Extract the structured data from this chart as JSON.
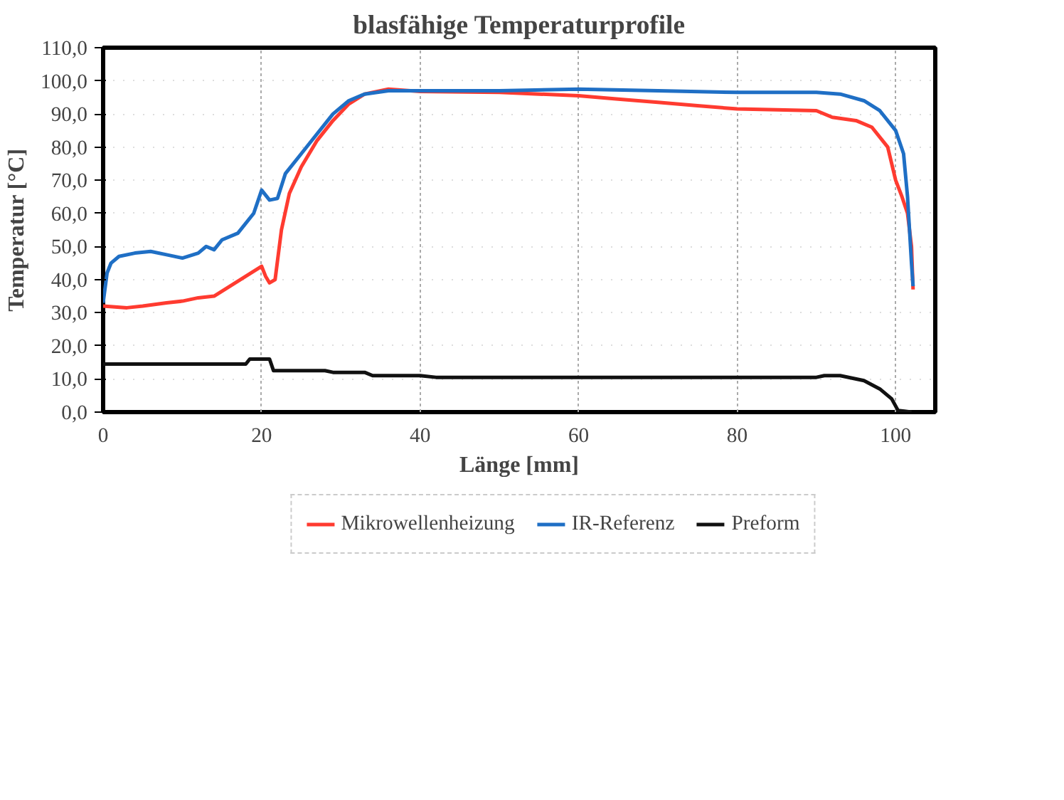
{
  "chart_data": {
    "type": "line",
    "title": "blasfähige Temperaturprofile",
    "xlabel": "Länge [mm]",
    "ylabel": "Temperatur [°C]",
    "xlim": [
      0,
      105
    ],
    "ylim": [
      0,
      110
    ],
    "xticks": [
      0,
      20,
      40,
      60,
      80,
      100
    ],
    "yticks": [
      {
        "value": 0,
        "label": "0,0"
      },
      {
        "value": 10,
        "label": "10,0"
      },
      {
        "value": 20,
        "label": "20,0"
      },
      {
        "value": 30,
        "label": "30,0"
      },
      {
        "value": 40,
        "label": "40,0"
      },
      {
        "value": 50,
        "label": "50,0"
      },
      {
        "value": 60,
        "label": "60,0"
      },
      {
        "value": 70,
        "label": "70,0"
      },
      {
        "value": 80,
        "label": "80,0"
      },
      {
        "value": 90,
        "label": "90,0"
      },
      {
        "value": 100,
        "label": "100,0"
      },
      {
        "value": 110,
        "label": "110,0"
      }
    ],
    "grid": true,
    "legend": "bottom",
    "line_style": "solid",
    "series": [
      {
        "name": "Mikrowellenheizung",
        "color": "#ff3b30",
        "x": [
          0,
          3,
          5,
          8,
          10,
          12,
          14,
          16,
          18,
          20,
          20.5,
          21,
          21.7,
          22.5,
          23.5,
          25,
          27,
          29,
          31,
          33,
          36,
          40,
          50,
          60,
          65,
          70,
          75,
          80,
          90,
          92,
          95,
          97,
          99,
          100,
          100.8,
          101.5,
          102,
          102.2
        ],
        "values": [
          32,
          31.5,
          32,
          33,
          33.5,
          34.5,
          35,
          38,
          41,
          44,
          41,
          39,
          40,
          55,
          66,
          74,
          82,
          88,
          93,
          96,
          97.5,
          96.8,
          96.5,
          95.5,
          94.5,
          93.5,
          92.5,
          91.5,
          91,
          89,
          88,
          86,
          80,
          70,
          65,
          60,
          50,
          37
        ]
      },
      {
        "name": "IR-Referenz",
        "color": "#1f6fc5",
        "x": [
          0,
          0.5,
          1,
          2,
          4,
          6,
          8,
          10,
          12,
          13,
          14,
          15,
          17,
          19,
          20,
          21,
          22,
          23,
          25,
          27,
          29,
          31,
          33,
          36,
          40,
          50,
          60,
          70,
          80,
          90,
          93,
          96,
          98,
          100,
          101,
          101.5,
          102,
          102.2
        ],
        "values": [
          33,
          42,
          45,
          47,
          48,
          48.5,
          47.5,
          46.5,
          48,
          50,
          49,
          52,
          54,
          60,
          67,
          64,
          64.5,
          72,
          78,
          84,
          90,
          94,
          96,
          97,
          97,
          97,
          97.5,
          97,
          96.5,
          96.5,
          96,
          94,
          91,
          85,
          78,
          65,
          45,
          38
        ]
      },
      {
        "name": "Preform",
        "color": "#111111",
        "x": [
          0,
          18,
          18.5,
          21,
          21.5,
          28,
          29,
          33,
          34,
          40,
          42,
          90,
          91,
          93,
          96,
          98,
          99.5,
          100.3,
          102
        ],
        "values": [
          14.5,
          14.5,
          16,
          16,
          12.5,
          12.5,
          12,
          12,
          11,
          11,
          10.5,
          10.5,
          11,
          11,
          9.5,
          7,
          4,
          0.5,
          0
        ]
      }
    ]
  }
}
